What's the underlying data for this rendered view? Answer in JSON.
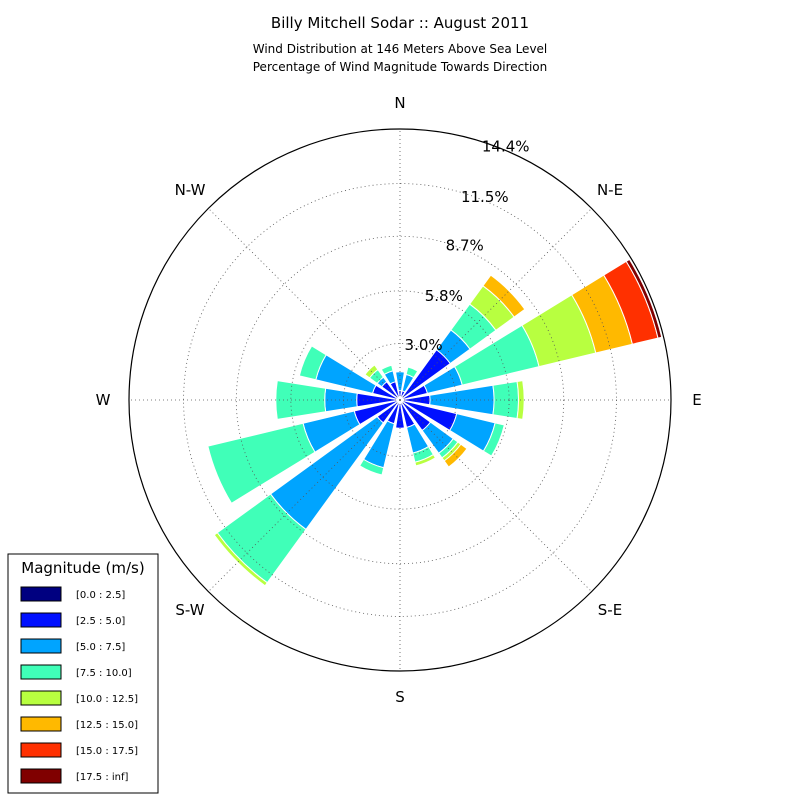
{
  "chart_data": {
    "type": "windrose",
    "title": "Billy Mitchell Sodar :: August 2011",
    "subtitle_lines": [
      "Wind Distribution at 146 Meters Above Sea Level",
      "Percentage of Wind Magnitude Towards Direction"
    ],
    "directions": [
      {
        "angle": 0,
        "label": "N"
      },
      {
        "angle": 45,
        "label": "N-E"
      },
      {
        "angle": 90,
        "label": "E"
      },
      {
        "angle": 135,
        "label": "S-E"
      },
      {
        "angle": 180,
        "label": "S"
      },
      {
        "angle": 225,
        "label": "S-W"
      },
      {
        "angle": 270,
        "label": "W"
      },
      {
        "angle": 315,
        "label": "N-W"
      }
    ],
    "r_max": 14.4,
    "ring_values": [
      3.0,
      5.8,
      8.7,
      11.5,
      14.4
    ],
    "ring_labels": [
      "3.0%",
      "5.8%",
      "8.7%",
      "11.5%",
      "14.4%"
    ],
    "legend": {
      "title": "Magnitude (m/s)",
      "placement": "lower-left",
      "bins": [
        {
          "label": "[0.0 : 2.5]",
          "color": "#000080"
        },
        {
          "label": "[2.5 : 5.0]",
          "color": "#0010ff"
        },
        {
          "label": "[5.0 : 7.5]",
          "color": "#00a4ff"
        },
        {
          "label": "[7.5 : 10.0]",
          "color": "#40ffb8"
        },
        {
          "label": "[10.0 : 12.5]",
          "color": "#b8ff40"
        },
        {
          "label": "[12.5 : 15.0]",
          "color": "#ffb900"
        },
        {
          "label": "[15.0 : 17.5]",
          "color": "#ff3000"
        },
        {
          "label": "[17.5 : inf]",
          "color": "#800000"
        }
      ]
    },
    "sector_width_deg": 18,
    "sectors": [
      {
        "angle": 0,
        "cum": [
          0.0,
          0.5,
          1.5,
          1.5
        ]
      },
      {
        "angle": 22.5,
        "cum": [
          0.0,
          0.5,
          1.4,
          1.8
        ]
      },
      {
        "angle": 45,
        "cum": [
          0.1,
          0.7,
          0.7,
          0.7
        ]
      },
      {
        "angle": 67.5,
        "cum": [
          0.1,
          1.5,
          1.5,
          1.5
        ]
      },
      {
        "angle": 90,
        "cum": [
          0.1,
          1.6,
          5.0,
          6.3,
          6.6
        ]
      },
      {
        "angle": 112.5,
        "cum": [
          0.1,
          3.1,
          5.2,
          5.7
        ]
      },
      {
        "angle": 135,
        "cum": [
          0.1,
          2.0,
          3.5,
          3.8,
          4.0,
          4.4
        ]
      },
      {
        "angle": 157.5,
        "cum": [
          0.1,
          1.5,
          2.9,
          3.4,
          3.6
        ]
      },
      {
        "angle": 180,
        "cum": [
          0.0,
          1.5,
          1.5
        ]
      },
      {
        "angle": 202.5,
        "cum": [
          0.1,
          1.3,
          3.7,
          4.1
        ]
      },
      {
        "angle": 225,
        "cum": [
          0.1,
          1.5,
          8.5,
          12.0,
          12.2
        ]
      },
      {
        "angle": 247.5,
        "cum": [
          0.1,
          2.5,
          5.3,
          10.5
        ]
      },
      {
        "angle": 270,
        "cum": [
          0.1,
          2.3,
          4.0,
          6.6
        ]
      },
      {
        "angle": 292.5,
        "cum": [
          0.1,
          1.5,
          4.6,
          5.5
        ]
      },
      {
        "angle": 315,
        "cum": [
          0.1,
          1.2,
          1.5,
          2.0,
          2.3
        ]
      },
      {
        "angle": 337.5,
        "cum": [
          0.1,
          1.0,
          1.6,
          1.9
        ]
      },
      {
        "angle": 45,
        "cum": [
          0.1,
          3.3,
          4.6,
          6.3,
          7.5,
          8.2
        ]
      },
      {
        "angle": 67.5,
        "cum": [
          0.1,
          1.5,
          3.4,
          7.6,
          10.7,
          12.7,
          14.1,
          14.3
        ]
      }
    ]
  }
}
